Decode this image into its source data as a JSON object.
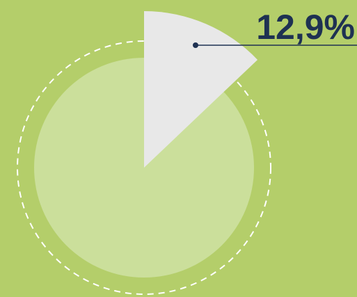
{
  "chart_data": {
    "type": "pie",
    "values": [
      12.9
    ],
    "value_labels": [
      "12,9%"
    ],
    "color": "#e8e8e8"
  }
}
